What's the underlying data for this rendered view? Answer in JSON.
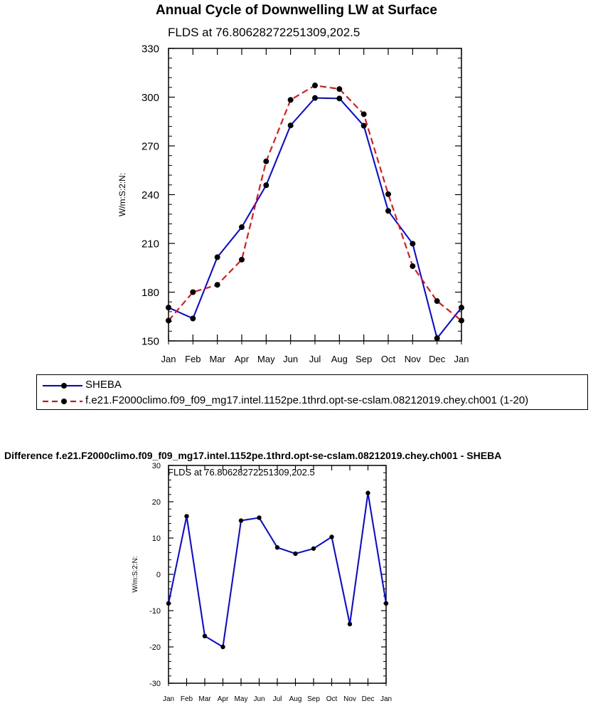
{
  "chart_data": [
    {
      "type": "line",
      "title": "Annual Cycle of Downwelling LW at Surface",
      "subtitle": "FLDS at 76.80628272251309,202.5",
      "xlabel": "",
      "ylabel": "W/m:S:2:N:",
      "categories": [
        "Jan",
        "Feb",
        "Mar",
        "Apr",
        "May",
        "Jun",
        "Jul",
        "Aug",
        "Sep",
        "Oct",
        "Nov",
        "Dec",
        "Jan"
      ],
      "ylim": [
        150,
        330
      ],
      "yticks": [
        150,
        180,
        210,
        240,
        270,
        300,
        330
      ],
      "series": [
        {
          "name": "SHEBA",
          "color": "#0000ff",
          "dash": "solid",
          "values": [
            170.5,
            163.8,
            201.5,
            220,
            245.8,
            282.6,
            299.5,
            299.2,
            282.4,
            230,
            209.8,
            151.6,
            170.5
          ]
        },
        {
          "name": "f.e21.F2000climo.f09_f09_mg17.intel.1152pe.1thrd.opt-se-cslam.08212019.chey.ch001 (1-20)",
          "color": "#ff0000",
          "dash": "dashed",
          "values": [
            162.5,
            180,
            184.5,
            200,
            260.5,
            298.3,
            307.2,
            305,
            289.5,
            240.3,
            196,
            174.5,
            162.5
          ]
        }
      ],
      "legend": "bottom"
    },
    {
      "type": "line",
      "title": "Difference f.e21.F2000climo.f09_f09_mg17.intel.1152pe.1thrd.opt-se-cslam.08212019.chey.ch001 - SHEBA",
      "subtitle": "FLDS at 76.80628272251309,202.5",
      "xlabel": "",
      "ylabel": "W/m:S:2:N:",
      "categories": [
        "Jan",
        "Feb",
        "Mar",
        "Apr",
        "May",
        "Jun",
        "Jul",
        "Aug",
        "Sep",
        "Oct",
        "Nov",
        "Dec",
        "Jan"
      ],
      "ylim": [
        -30,
        30
      ],
      "yticks": [
        -30,
        -20,
        -10,
        0,
        10,
        20,
        30
      ],
      "series": [
        {
          "name": "Difference",
          "color": "#0000ff",
          "dash": "solid",
          "values": [
            -8,
            16,
            -17,
            -20,
            14.8,
            15.6,
            7.4,
            5.7,
            7.1,
            10.3,
            -13.7,
            22.4,
            -8
          ]
        }
      ]
    }
  ],
  "legend_entries": [
    "SHEBA",
    "f.e21.F2000climo.f09_f09_mg17.intel.1152pe.1thrd.opt-se-cslam.08212019.chey.ch001 (1-20)"
  ]
}
